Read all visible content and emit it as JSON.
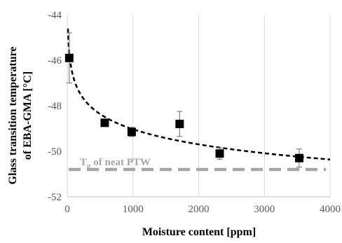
{
  "chart_data": {
    "type": "scatter",
    "xlabel": "Moisture content [ppm]",
    "ylabel": [
      "Glass transition temperature",
      "of EBA-GMA [°C]"
    ],
    "xlim": [
      0,
      4000
    ],
    "ylim": [
      -52,
      -44
    ],
    "xticks": [
      0,
      1000,
      2000,
      3000,
      4000
    ],
    "yticks": [
      -52,
      -50,
      -48,
      -46,
      -44
    ],
    "grid": "vertical",
    "points": [
      {
        "x": 30,
        "y": -45.9,
        "err": 1.1
      },
      {
        "x": 570,
        "y": -48.75,
        "err": 0.15
      },
      {
        "x": 980,
        "y": -49.15,
        "err": 0.2
      },
      {
        "x": 1710,
        "y": -48.8,
        "err": 0.55
      },
      {
        "x": 2320,
        "y": -50.1,
        "err": 0.25
      },
      {
        "x": 3530,
        "y": -50.3,
        "err": 0.4
      }
    ],
    "trendline": {
      "type": "logarithmic",
      "a": -42.4,
      "b": -0.96,
      "color": "#000000",
      "style": "dashed"
    },
    "reference_line": {
      "y": -50.8,
      "label_main": "T",
      "label_sub": "g",
      "label_rest": " of neat PTW",
      "color": "#a6a6a6",
      "style": "dashed"
    },
    "marker_color": "#000000",
    "errorbar_color": "#7f7f7f"
  }
}
